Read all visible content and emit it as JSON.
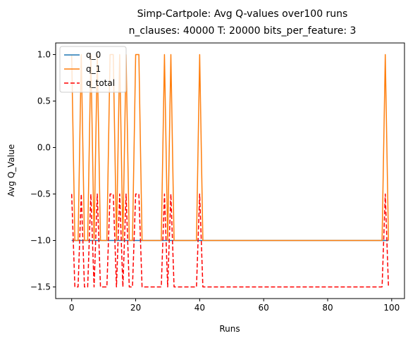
{
  "chart_data": {
    "type": "line",
    "title": "Simp-Cartpole: Avg Q-values over100 runs",
    "subtitle": "n_clauses: 40000 T: 20000 bits_per_feature: 3",
    "xlabel": "Runs",
    "ylabel": "Avg Q_Value",
    "xlim": [
      -5,
      104
    ],
    "ylim": [
      -1.625,
      1.125
    ],
    "xticks": [
      0,
      20,
      40,
      60,
      80,
      100
    ],
    "yticks": [
      -1.5,
      -1.0,
      -0.5,
      0.0,
      0.5,
      1.0
    ],
    "xtick_labels": [
      "0",
      "20",
      "40",
      "60",
      "80",
      "100"
    ],
    "ytick_labels": [
      "−1.5",
      "−1.0",
      "−0.5",
      "0.0",
      "0.5",
      "1.0"
    ],
    "grid": false,
    "legend_position": "upper-left",
    "x": [
      0,
      1,
      2,
      3,
      4,
      5,
      6,
      7,
      8,
      9,
      10,
      11,
      12,
      13,
      14,
      15,
      16,
      17,
      18,
      19,
      20,
      21,
      22,
      23,
      24,
      25,
      26,
      27,
      28,
      29,
      30,
      31,
      32,
      33,
      34,
      35,
      36,
      37,
      38,
      39,
      40,
      41,
      42,
      43,
      44,
      45,
      46,
      47,
      48,
      49,
      50,
      51,
      52,
      53,
      54,
      55,
      56,
      57,
      58,
      59,
      60,
      61,
      62,
      63,
      64,
      65,
      66,
      67,
      68,
      69,
      70,
      71,
      72,
      73,
      74,
      75,
      76,
      77,
      78,
      79,
      80,
      81,
      82,
      83,
      84,
      85,
      86,
      87,
      88,
      89,
      90,
      91,
      92,
      93,
      94,
      95,
      96,
      97,
      98,
      99
    ],
    "series": [
      {
        "name": "q_0",
        "color": "#1f77b4",
        "style": "solid",
        "values": [
          -1,
          -1,
          -1,
          -1,
          -1,
          -1,
          -1,
          -1,
          -1,
          -1,
          -1,
          -1,
          -1,
          -1,
          -1,
          -1,
          -1,
          -1,
          -1,
          -1,
          -1,
          -1,
          -1,
          -1,
          -1,
          -1,
          -1,
          -1,
          -1,
          -1,
          -1,
          -1,
          -1,
          -1,
          -1,
          -1,
          -1,
          -1,
          -1,
          -1,
          -1,
          -1,
          -1,
          -1,
          -1,
          -1,
          -1,
          -1,
          -1,
          -1,
          -1,
          -1,
          -1,
          -1,
          -1,
          -1,
          -1,
          -1,
          -1,
          -1,
          -1,
          -1,
          -1,
          -1,
          -1,
          -1,
          -1,
          -1,
          -1,
          -1,
          -1,
          -1,
          -1,
          -1,
          -1,
          -1,
          -1,
          -1,
          -1,
          -1,
          -1,
          -1,
          -1,
          -1,
          -1,
          -1,
          -1,
          -1,
          -1,
          -1,
          -1,
          -1,
          -1,
          -1,
          -1,
          -1,
          -1,
          -1,
          -1,
          -1
        ]
      },
      {
        "name": "q_1",
        "color": "#ff7f0e",
        "style": "solid",
        "values": [
          1,
          -1,
          -1,
          1,
          -1,
          -1,
          1,
          -1,
          1,
          -1,
          -1,
          -1,
          1,
          1,
          -1,
          1,
          -1,
          1,
          -1,
          -1,
          1,
          1,
          -1,
          -1,
          -1,
          -1,
          -1,
          -1,
          -1,
          1,
          -1,
          1,
          -1,
          -1,
          -1,
          -1,
          -1,
          -1,
          -1,
          -1,
          1,
          -1,
          -1,
          -1,
          -1,
          -1,
          -1,
          -1,
          -1,
          -1,
          -1,
          -1,
          -1,
          -1,
          -1,
          -1,
          -1,
          -1,
          -1,
          -1,
          -1,
          -1,
          -1,
          -1,
          -1,
          -1,
          -1,
          -1,
          -1,
          -1,
          -1,
          -1,
          -1,
          -1,
          -1,
          -1,
          -1,
          -1,
          -1,
          -1,
          -1,
          -1,
          -1,
          -1,
          -1,
          -1,
          -1,
          -1,
          -1,
          -1,
          -1,
          -1,
          -1,
          -1,
          -1,
          -1,
          -1,
          -1,
          1,
          -1
        ]
      },
      {
        "name": "q_total",
        "color": "#ff0000",
        "style": "dashed",
        "values": [
          -0.5,
          -1.5,
          -1.5,
          -0.5,
          -1.5,
          -1.5,
          -0.5,
          -1.5,
          -0.5,
          -1.5,
          -1.5,
          -1.5,
          -0.5,
          -0.5,
          -1.5,
          -0.5,
          -1.5,
          -0.5,
          -1.5,
          -1.5,
          -0.5,
          -0.5,
          -1.5,
          -1.5,
          -1.5,
          -1.5,
          -1.5,
          -1.5,
          -1.5,
          -0.5,
          -1.5,
          -0.5,
          -1.5,
          -1.5,
          -1.5,
          -1.5,
          -1.5,
          -1.5,
          -1.5,
          -1.5,
          -0.5,
          -1.5,
          -1.5,
          -1.5,
          -1.5,
          -1.5,
          -1.5,
          -1.5,
          -1.5,
          -1.5,
          -1.5,
          -1.5,
          -1.5,
          -1.5,
          -1.5,
          -1.5,
          -1.5,
          -1.5,
          -1.5,
          -1.5,
          -1.5,
          -1.5,
          -1.5,
          -1.5,
          -1.5,
          -1.5,
          -1.5,
          -1.5,
          -1.5,
          -1.5,
          -1.5,
          -1.5,
          -1.5,
          -1.5,
          -1.5,
          -1.5,
          -1.5,
          -1.5,
          -1.5,
          -1.5,
          -1.5,
          -1.5,
          -1.5,
          -1.5,
          -1.5,
          -1.5,
          -1.5,
          -1.5,
          -1.5,
          -1.5,
          -1.5,
          -1.5,
          -1.5,
          -1.5,
          -1.5,
          -1.5,
          -1.5,
          -1.5,
          -0.5,
          -1.5
        ]
      }
    ]
  }
}
